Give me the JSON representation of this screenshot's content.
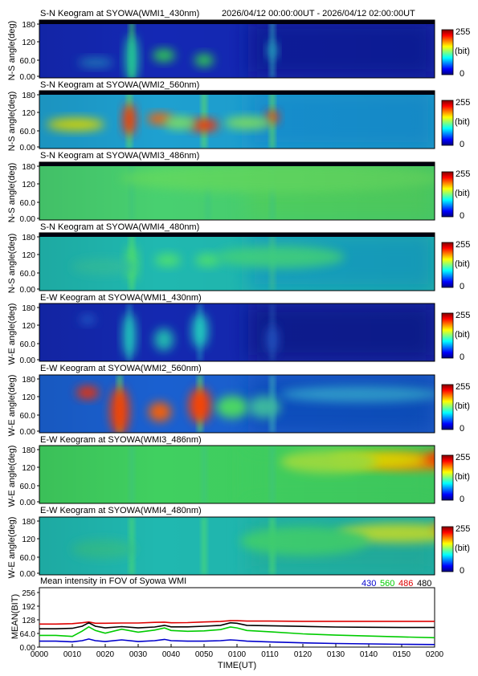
{
  "header": {
    "time_range": "2026/04/12 00:00:00UT - 2026/04/12 02:00:00UT"
  },
  "colorbar": {
    "max_label": "255",
    "unit_label": "(bit)",
    "min_label": "0",
    "colors": [
      "#00007f",
      "#0000ff",
      "#0080ff",
      "#00ffff",
      "#80ff80",
      "#ffff00",
      "#ff8000",
      "#ff0000",
      "#7f0000"
    ]
  },
  "keograms": [
    {
      "title": "S-N Keogram at SYOWA(WMI1_430nm)",
      "ylabel": "N-S angle(deg)",
      "yticks": [
        "180",
        "120",
        "60.0",
        "0.00"
      ]
    },
    {
      "title": "S-N Keogram at SYOWA(WMI2_560nm)",
      "ylabel": "N-S angle(deg)",
      "yticks": [
        "180",
        "120",
        "60.0",
        "0.00"
      ]
    },
    {
      "title": "S-N Keogram at SYOWA(WMI3_486nm)",
      "ylabel": "N-S angle(deg)",
      "yticks": [
        "180",
        "120",
        "60.0",
        "0.00"
      ]
    },
    {
      "title": "S-N Keogram at SYOWA(WMI4_480nm)",
      "ylabel": "N-S angle(deg)",
      "yticks": [
        "180",
        "120",
        "60.0",
        "0.00"
      ]
    },
    {
      "title": "E-W Keogram at SYOWA(WMI1_430nm)",
      "ylabel": "W-E angle(deg)",
      "yticks": [
        "180",
        "120",
        "60.0",
        "0.00"
      ]
    },
    {
      "title": "E-W Keogram at SYOWA(WMI2_560nm)",
      "ylabel": "W-E angle(deg)",
      "yticks": [
        "180",
        "120",
        "60.0",
        "0.00"
      ]
    },
    {
      "title": "E-W Keogram at SYOWA(WMI3_486nm)",
      "ylabel": "W-E angle(deg)",
      "yticks": [
        "180",
        "120",
        "60.0",
        "0.00"
      ]
    },
    {
      "title": "E-W Keogram at SYOWA(WMI4_480nm)",
      "ylabel": "W-E angle(deg)",
      "yticks": [
        "180",
        "120",
        "60.0",
        "0.00"
      ]
    }
  ],
  "chart_data": {
    "type": "line",
    "title": "Mean intensity in FOV of Syowa WMI",
    "xlabel": "TIME(UT)",
    "ylabel": "MEAN(BIT)",
    "x_ticks": [
      "0000",
      "0010",
      "0020",
      "0030",
      "0040",
      "0050",
      "0100",
      "0110",
      "0120",
      "0130",
      "0140",
      "0150",
      "0200"
    ],
    "y_ticks": [
      "256",
      "192",
      "128",
      "64.0",
      "0.00"
    ],
    "ylim": [
      0,
      256
    ],
    "xlim": [
      0,
      120
    ],
    "legend": [
      {
        "label": "430",
        "color": "#0000cc"
      },
      {
        "label": "560",
        "color": "#00cc00"
      },
      {
        "label": "486",
        "color": "#dd0000"
      },
      {
        "label": "480",
        "color": "#000000"
      }
    ],
    "series": [
      {
        "name": "486",
        "color": "#dd0000",
        "x": [
          0,
          5,
          10,
          13,
          15,
          17,
          20,
          25,
          30,
          35,
          38,
          40,
          45,
          50,
          55,
          58,
          60,
          63,
          70,
          80,
          90,
          100,
          110,
          120
        ],
        "y": [
          108,
          108,
          110,
          114,
          118,
          112,
          112,
          113,
          113,
          116,
          117,
          114,
          115,
          118,
          120,
          124,
          124,
          122,
          122,
          121,
          121,
          121,
          121,
          121
        ]
      },
      {
        "name": "480",
        "color": "#000000",
        "x": [
          0,
          5,
          10,
          13,
          15,
          17,
          20,
          25,
          30,
          35,
          38,
          40,
          45,
          50,
          55,
          58,
          60,
          63,
          70,
          80,
          90,
          100,
          110,
          120
        ],
        "y": [
          86,
          86,
          88,
          98,
          114,
          98,
          90,
          96,
          90,
          94,
          102,
          95,
          95,
          98,
          102,
          114,
          112,
          102,
          100,
          97,
          94,
          93,
          92,
          92
        ]
      },
      {
        "name": "560",
        "color": "#00cc00",
        "x": [
          0,
          5,
          10,
          13,
          15,
          17,
          20,
          25,
          30,
          35,
          38,
          40,
          45,
          50,
          55,
          58,
          60,
          63,
          70,
          80,
          90,
          100,
          110,
          120
        ],
        "y": [
          55,
          55,
          50,
          75,
          95,
          78,
          65,
          84,
          70,
          80,
          90,
          78,
          74,
          76,
          82,
          94,
          90,
          78,
          72,
          62,
          56,
          52,
          48,
          44
        ]
      },
      {
        "name": "430",
        "color": "#0000cc",
        "x": [
          0,
          5,
          10,
          13,
          15,
          17,
          20,
          25,
          30,
          35,
          38,
          40,
          45,
          50,
          55,
          58,
          60,
          63,
          70,
          80,
          90,
          100,
          110,
          120
        ],
        "y": [
          28,
          28,
          25,
          30,
          38,
          30,
          26,
          34,
          26,
          30,
          36,
          30,
          28,
          28,
          30,
          34,
          32,
          28,
          24,
          20,
          17,
          15,
          13,
          12
        ]
      }
    ]
  }
}
